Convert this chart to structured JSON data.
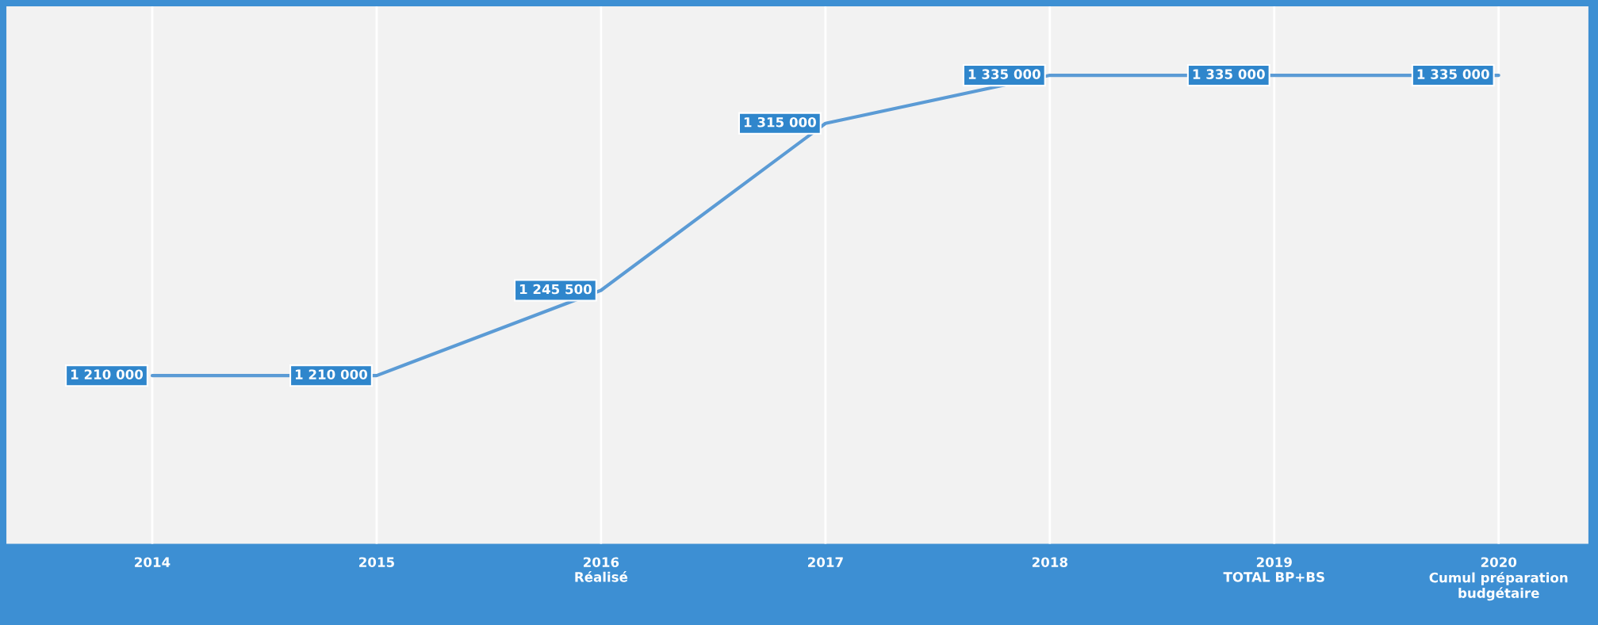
{
  "chart_data": {
    "type": "line",
    "categories": [
      "2014",
      "2015",
      "2016\nRéalisé",
      "2017",
      "2018",
      "2019\nTOTAL BP+BS",
      "2020\nCumul préparation\nbudgétaire"
    ],
    "series": [
      {
        "color": "#5b9bd5",
        "values": [
          1210000,
          1210000,
          1245500,
          1315000,
          1335000,
          1335000,
          1335000
        ],
        "value_labels": [
          "1 210 000",
          "1 210 000",
          "1 245 500",
          "1 315 000",
          "1 335 000",
          "1 335 000",
          "1 335 000"
        ]
      }
    ],
    "grid": "x",
    "marker": "none",
    "line_style": "solid",
    "legend": false
  }
}
